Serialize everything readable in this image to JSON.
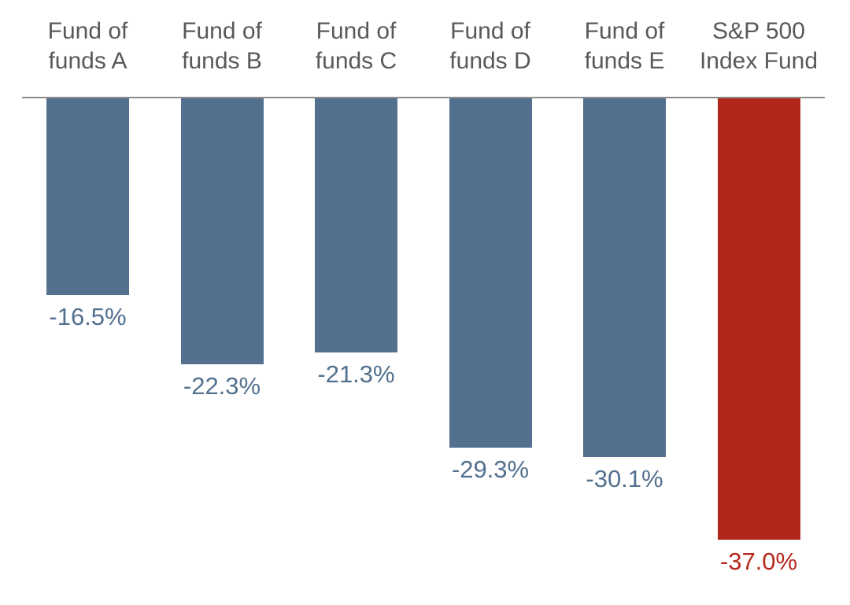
{
  "chart_data": {
    "type": "bar",
    "title": "",
    "xlabel": "",
    "ylabel": "",
    "orientation": "vertical",
    "baseline_value": 0,
    "ylim": [
      -40,
      0
    ],
    "grid": false,
    "legend": "none",
    "categories": [
      "Fund of funds A",
      "Fund of funds B",
      "Fund of funds C",
      "Fund of funds D",
      "Fund of funds E",
      "S&P 500 Index Fund"
    ],
    "category_lines": [
      [
        "Fund of",
        "funds A"
      ],
      [
        "Fund of",
        "funds B"
      ],
      [
        "Fund of",
        "funds C"
      ],
      [
        "Fund of",
        "funds D"
      ],
      [
        "Fund of",
        "funds E"
      ],
      [
        "S&P 500",
        "Index Fund"
      ]
    ],
    "values": [
      -16.5,
      -22.3,
      -21.3,
      -29.3,
      -30.1,
      -37.0
    ],
    "value_labels": [
      "-16.5%",
      "-22.3%",
      "-21.3%",
      "-29.3%",
      "-30.1%",
      "-37.0%"
    ],
    "highlight_index": 5
  },
  "colors": {
    "bar_fund": "#53708e",
    "value_text_fund": "#53708e",
    "bar_highlight": "#b2271b",
    "value_text_highlight": "#b6291e",
    "category_text": "#58595b",
    "baseline_line": "#8c8c8c",
    "background": "#ffffff"
  }
}
